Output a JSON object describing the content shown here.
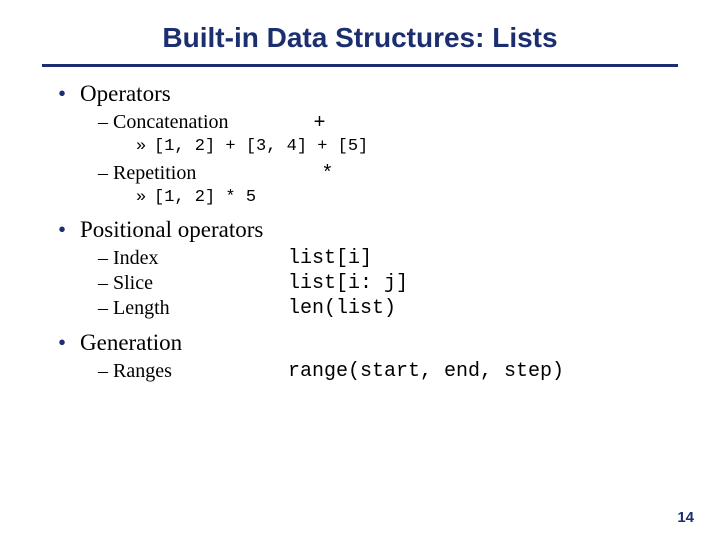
{
  "colors": {
    "title": "#1b2e6f",
    "hr": "#1b2e6f",
    "bullet": "#1b2e6f",
    "text": "#000000",
    "background": "#ffffff",
    "pagenum": "#1b2e6f"
  },
  "fonts": {
    "title_family": "Arial",
    "title_size_pt": 28,
    "title_weight": "bold",
    "body_family": "Georgia",
    "lvl1_size_pt": 23,
    "lvl2_size_pt": 20,
    "lvl3_size_pt": 17,
    "mono_family": "Courier New"
  },
  "title": "Built-in Data Structures: Lists",
  "page_number": "14",
  "sections": [
    {
      "heading": "Operators",
      "items": [
        {
          "label": "Concatenation",
          "symbol": "+",
          "code": "[1, 2] + [3, 4] + [5]"
        },
        {
          "label": "Repetition",
          "symbol": "*",
          "code": "[1, 2] * 5"
        }
      ]
    },
    {
      "heading": "Positional operators",
      "items": [
        {
          "label": "Index",
          "code": "list[i]"
        },
        {
          "label": "Slice",
          "code": "list[i: j]"
        },
        {
          "label": "Length",
          "code": "len(list)"
        }
      ]
    },
    {
      "heading": "Generation",
      "items": [
        {
          "label": "Ranges",
          "code": "range(start, end, step)"
        }
      ]
    }
  ],
  "glyphs": {
    "bullet_lvl1": "•",
    "bullet_lvl2": "–",
    "bullet_lvl3": "»"
  }
}
